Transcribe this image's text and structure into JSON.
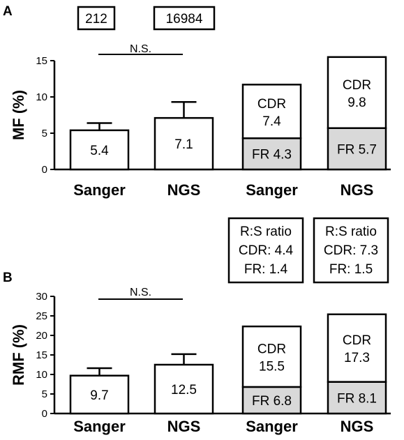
{
  "top_boxes": [
    "212",
    "16984"
  ],
  "chart_data": [
    {
      "type": "bar",
      "panel": "A",
      "ylabel": "MF (%)",
      "ylim": [
        0,
        15
      ],
      "yticks": [
        "0",
        "5",
        "10",
        "15"
      ],
      "significance": "N.S.",
      "groups": [
        {
          "label": "Sanger",
          "total": 5.4,
          "error": 1.0,
          "labels": [
            "5.4"
          ]
        },
        {
          "label": "NGS",
          "total": 7.1,
          "error": 2.2,
          "labels": [
            "7.1"
          ]
        },
        {
          "label": "Sanger",
          "stacked": true,
          "fr": 4.3,
          "cdr": 7.4,
          "fr_label": "FR 4.3",
          "cdr_label": [
            "CDR",
            "7.4"
          ]
        },
        {
          "label": "NGS",
          "stacked": true,
          "fr": 5.7,
          "cdr": 9.8,
          "fr_label": "FR 5.7",
          "cdr_label": [
            "CDR",
            "9.8"
          ]
        }
      ]
    },
    {
      "type": "bar",
      "panel": "B",
      "ylabel": "RMF (%)",
      "ylim": [
        0,
        30
      ],
      "yticks": [
        "0",
        "5",
        "10",
        "15",
        "20",
        "25",
        "30"
      ],
      "significance": "N.S.",
      "ratio_boxes": [
        [
          "R:S ratio",
          "CDR: 4.4",
          "FR: 1.4"
        ],
        [
          "R:S ratio",
          "CDR: 7.3",
          "FR: 1.5"
        ]
      ],
      "groups": [
        {
          "label": "Sanger",
          "total": 9.7,
          "error": 1.9,
          "labels": [
            "9.7"
          ]
        },
        {
          "label": "NGS",
          "total": 12.5,
          "error": 2.7,
          "labels": [
            "12.5"
          ]
        },
        {
          "label": "Sanger",
          "stacked": true,
          "fr": 6.8,
          "cdr": 15.5,
          "fr_label": "FR 6.8",
          "cdr_label": [
            "CDR",
            "15.5"
          ]
        },
        {
          "label": "NGS",
          "stacked": true,
          "fr": 8.1,
          "cdr": 17.3,
          "fr_label": "FR 8.1",
          "cdr_label": [
            "CDR",
            "17.3"
          ]
        }
      ]
    }
  ]
}
